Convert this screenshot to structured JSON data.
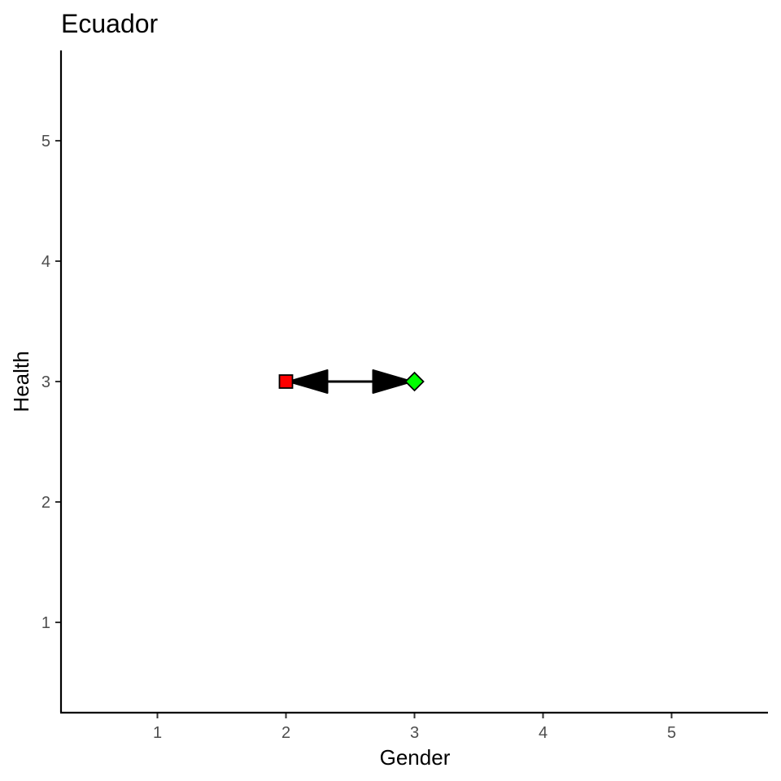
{
  "chart_data": {
    "type": "scatter",
    "title": "Ecuador",
    "xlabel": "Gender",
    "ylabel": "Health",
    "xlim": [
      0.25,
      5.75
    ],
    "ylim": [
      0.25,
      5.75
    ],
    "xticks": [
      1,
      2,
      3,
      4,
      5
    ],
    "yticks": [
      1,
      2,
      3,
      4,
      5
    ],
    "grid": false,
    "points": [
      {
        "x": 2,
        "y": 3,
        "shape": "square",
        "color": "#ff0000"
      },
      {
        "x": 3,
        "y": 3,
        "shape": "diamond",
        "color": "#00ff00"
      }
    ],
    "arrow": {
      "from": [
        2,
        3
      ],
      "to": [
        3,
        3
      ],
      "both_ends": true,
      "color": "#000000"
    }
  }
}
